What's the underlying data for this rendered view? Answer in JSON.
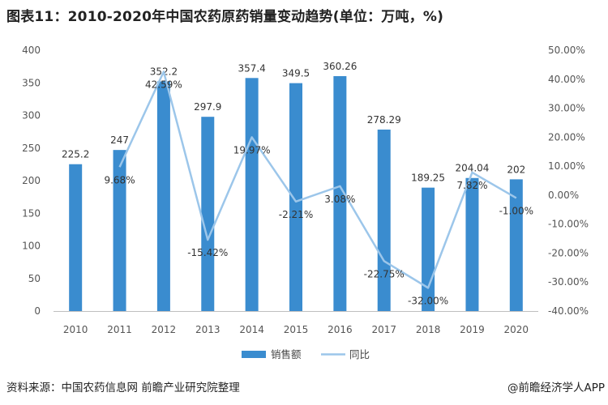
{
  "title": "图表11：2010-2020年中国农药原药销量变动趋势(单位：万吨，%)",
  "source": "资料来源：中国农药信息网 前瞻产业研究院整理",
  "brand": "@前瞻经济学人APP",
  "colors": {
    "bar": "#3a8ccf",
    "line": "#9cc6ea"
  },
  "chart_data": {
    "type": "bar",
    "title": "图表11：2010-2020年中国农药原药销量变动趋势(单位：万吨，%)",
    "categories": [
      "2010",
      "2011",
      "2012",
      "2013",
      "2014",
      "2015",
      "2016",
      "2017",
      "2018",
      "2019",
      "2020"
    ],
    "series": [
      {
        "name": "销售额",
        "type": "bar",
        "axis": "left",
        "values": [
          225.2,
          247,
          352.2,
          297.9,
          357.4,
          349.5,
          360.26,
          278.29,
          189.25,
          204.04,
          202
        ],
        "labels": [
          "225.2",
          "247",
          "352.2",
          "297.9",
          "357.4",
          "349.5",
          "360.26",
          "278.29",
          "189.25",
          "204.04",
          "202"
        ]
      },
      {
        "name": "同比",
        "type": "line",
        "axis": "right",
        "values": [
          null,
          9.68,
          42.59,
          -15.42,
          19.97,
          -2.21,
          3.08,
          -22.75,
          -32.0,
          7.82,
          -1.0
        ],
        "labels": [
          "",
          "9.68%",
          "42.59%",
          "-15.42%",
          "19.97%",
          "-2.21%",
          "3.08%",
          "-22.75%",
          "-32.00%",
          "7.82%",
          "-1.00%"
        ]
      }
    ],
    "y_left": {
      "range": [
        0,
        400
      ],
      "ticks": [
        "0",
        "50",
        "100",
        "150",
        "200",
        "250",
        "300",
        "350",
        "400"
      ]
    },
    "y_right": {
      "range": [
        -40,
        50
      ],
      "ticks": [
        "-40.00%",
        "-30.00%",
        "-20.00%",
        "-10.00%",
        "0.00%",
        "10.00%",
        "20.00%",
        "30.00%",
        "40.00%",
        "50.00%"
      ]
    },
    "grid": false,
    "legend": "bottom"
  }
}
